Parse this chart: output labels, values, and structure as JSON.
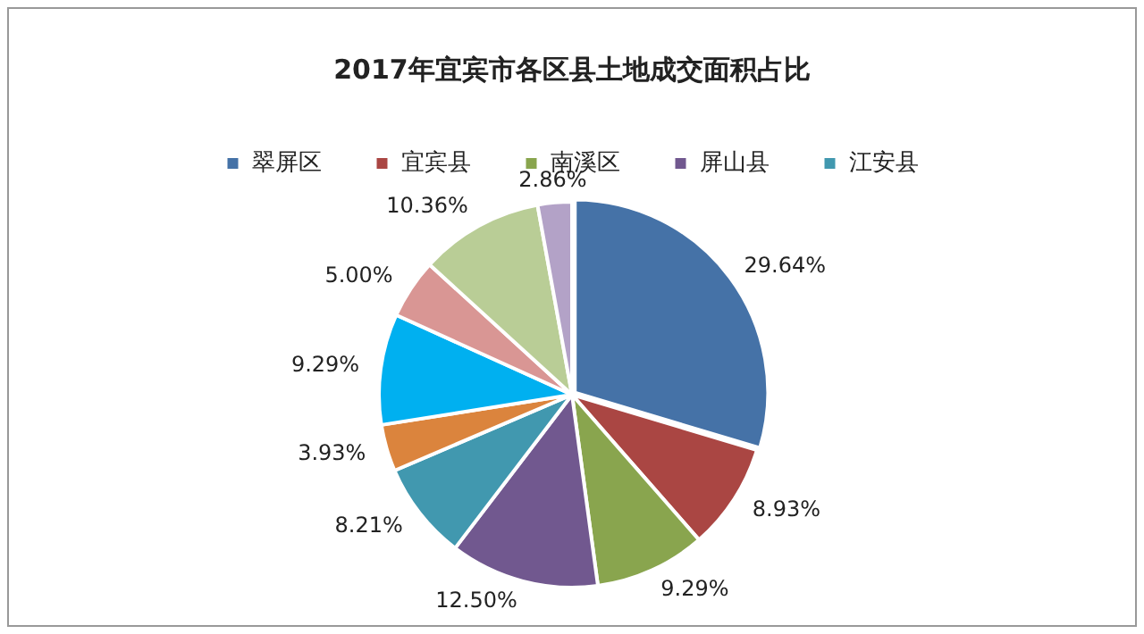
{
  "chart_data": {
    "type": "pie",
    "title": "2017年宜宾市各区县土地成交面积占比",
    "categories": [
      "翠屏区",
      "宜宾县",
      "南溪区",
      "屏山县",
      "江安县",
      null,
      null,
      null,
      null,
      null
    ],
    "values": [
      29.64,
      8.93,
      9.29,
      12.5,
      8.21,
      3.93,
      9.29,
      5.0,
      10.36,
      2.86
    ],
    "colors": [
      "#4572a7",
      "#aa4643",
      "#89a54e",
      "#71588f",
      "#4198af",
      "#db843d",
      "#00b0f0",
      "#d99694",
      "#b9cd96",
      "#b3a2c7"
    ],
    "value_labels": [
      "29.64%",
      "8.93%",
      "9.29%",
      "12.50%",
      "8.21%",
      "3.93%",
      "9.29%",
      "5.00%",
      "10.36%",
      "2.86%"
    ],
    "legend": "top"
  }
}
